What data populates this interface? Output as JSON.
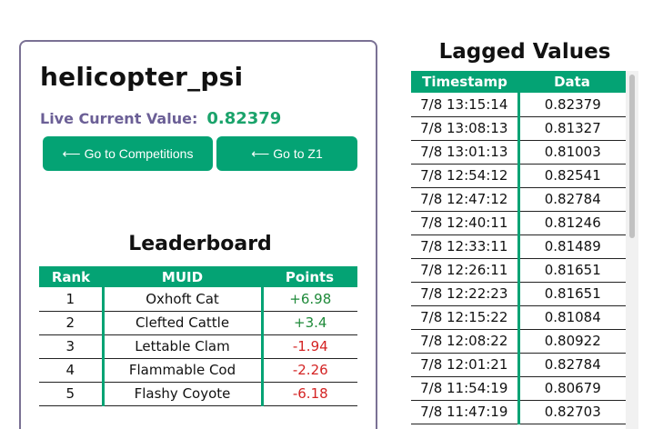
{
  "metric": {
    "name": "helicopter_psi",
    "live_label": "Live Current Value:",
    "live_value": "0.82379"
  },
  "buttons": {
    "competitions": "Go to Competitions",
    "z1": "Go to Z1",
    "arrow": "⟵"
  },
  "leaderboard": {
    "title": "Leaderboard",
    "headers": [
      "Rank",
      "MUID",
      "Points"
    ],
    "rows": [
      {
        "rank": "1",
        "muid": "Oxhoft Cat",
        "points": "+6.98"
      },
      {
        "rank": "2",
        "muid": "Clefted Cattle",
        "points": "+3.4"
      },
      {
        "rank": "3",
        "muid": "Lettable Clam",
        "points": "-1.94"
      },
      {
        "rank": "4",
        "muid": "Flammable Cod",
        "points": "-2.26"
      },
      {
        "rank": "5",
        "muid": "Flashy Coyote",
        "points": "-6.18"
      }
    ]
  },
  "lagged": {
    "title": "Lagged Values",
    "headers": [
      "Timestamp",
      "Data"
    ],
    "rows": [
      {
        "ts": "7/8 13:15:14",
        "value": "0.82379"
      },
      {
        "ts": "7/8 13:08:13",
        "value": "0.81327"
      },
      {
        "ts": "7/8 13:01:13",
        "value": "0.81003"
      },
      {
        "ts": "7/8 12:54:12",
        "value": "0.82541"
      },
      {
        "ts": "7/8 12:47:12",
        "value": "0.82784"
      },
      {
        "ts": "7/8 12:40:11",
        "value": "0.81246"
      },
      {
        "ts": "7/8 12:33:11",
        "value": "0.81489"
      },
      {
        "ts": "7/8 12:26:11",
        "value": "0.81651"
      },
      {
        "ts": "7/8 12:22:23",
        "value": "0.81651"
      },
      {
        "ts": "7/8 12:15:22",
        "value": "0.81084"
      },
      {
        "ts": "7/8 12:08:22",
        "value": "0.80922"
      },
      {
        "ts": "7/8 12:01:21",
        "value": "0.82784"
      },
      {
        "ts": "7/8 11:54:19",
        "value": "0.80679"
      },
      {
        "ts": "7/8 11:47:19",
        "value": "0.82703"
      }
    ]
  },
  "colors": {
    "accent": "#04a374",
    "label_purple": "#6b5f96",
    "positive": "#1f8a3a",
    "negative": "#d42424"
  }
}
